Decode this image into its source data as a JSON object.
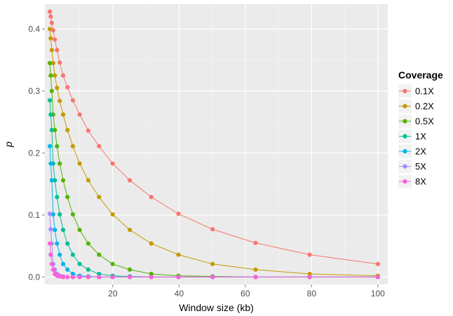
{
  "chart_data": {
    "type": "line",
    "title": "",
    "xlabel": "Window size (kb)",
    "ylabel": "p",
    "xlim": [
      -0.5,
      103
    ],
    "ylim": [
      -0.012,
      0.44
    ],
    "x_ticks": [
      20,
      40,
      60,
      80,
      100
    ],
    "y_ticks": [
      0.0,
      0.1,
      0.2,
      0.3,
      0.4
    ],
    "y_tick_labels": [
      "0.0",
      "0.1",
      "0.2",
      "0.3",
      "0.4"
    ],
    "grid": true,
    "markers": true,
    "legend": {
      "title": "Coverage",
      "position": "right"
    },
    "x": [
      1.0,
      1.26,
      1.58,
      2.0,
      2.51,
      3.16,
      3.98,
      5.01,
      6.31,
      7.94,
      10.0,
      12.59,
      15.85,
      19.95,
      25.12,
      31.62,
      39.81,
      50.12,
      63.1,
      79.43,
      100.0
    ],
    "series": [
      {
        "name": "0.1X",
        "color": "#F8766D",
        "values": [
          0.428,
          0.42,
          0.41,
          0.398,
          0.383,
          0.366,
          0.346,
          0.325,
          0.306,
          0.285,
          0.262,
          0.236,
          0.211,
          0.183,
          0.156,
          0.129,
          0.102,
          0.077,
          0.055,
          0.036,
          0.021
        ]
      },
      {
        "name": "0.2X",
        "color": "#C49A00",
        "values": [
          0.4,
          0.385,
          0.366,
          0.345,
          0.325,
          0.305,
          0.284,
          0.262,
          0.237,
          0.211,
          0.183,
          0.156,
          0.129,
          0.101,
          0.076,
          0.054,
          0.036,
          0.021,
          0.012,
          0.005,
          0.002
        ]
      },
      {
        "name": "0.5X",
        "color": "#53B400",
        "values": [
          0.345,
          0.325,
          0.3,
          0.262,
          0.237,
          0.211,
          0.183,
          0.156,
          0.129,
          0.101,
          0.076,
          0.054,
          0.036,
          0.021,
          0.012,
          0.005,
          0.002,
          0.001,
          0.0,
          0.0,
          0.0
        ]
      },
      {
        "name": "1X",
        "color": "#00C094",
        "values": [
          0.285,
          0.262,
          0.237,
          0.183,
          0.156,
          0.129,
          0.101,
          0.076,
          0.054,
          0.036,
          0.021,
          0.012,
          0.005,
          0.002,
          0.001,
          0.0,
          0.0,
          0.0,
          0.0,
          0.0,
          0.0
        ]
      },
      {
        "name": "2X",
        "color": "#00B6EB",
        "values": [
          0.211,
          0.183,
          0.156,
          0.101,
          0.076,
          0.054,
          0.036,
          0.021,
          0.012,
          0.005,
          0.002,
          0.001,
          0.0,
          0.0,
          0.0,
          0.0,
          0.0,
          0.0,
          0.0,
          0.0,
          0.0
        ]
      },
      {
        "name": "5X",
        "color": "#A58AFF",
        "values": [
          0.102,
          0.077,
          0.054,
          0.021,
          0.012,
          0.005,
          0.002,
          0.001,
          0.0,
          0.0,
          0.0,
          0.0,
          0.0,
          0.0,
          0.0,
          0.0,
          0.0,
          0.0,
          0.0,
          0.0,
          0.0
        ]
      },
      {
        "name": "8X",
        "color": "#FB61D7",
        "values": [
          0.054,
          0.036,
          0.021,
          0.012,
          0.005,
          0.002,
          0.001,
          0.0,
          0.0,
          0.0,
          0.0,
          0.0,
          0.0,
          0.0,
          0.0,
          0.0,
          0.0,
          0.0,
          0.0,
          0.0,
          0.0
        ]
      }
    ]
  }
}
